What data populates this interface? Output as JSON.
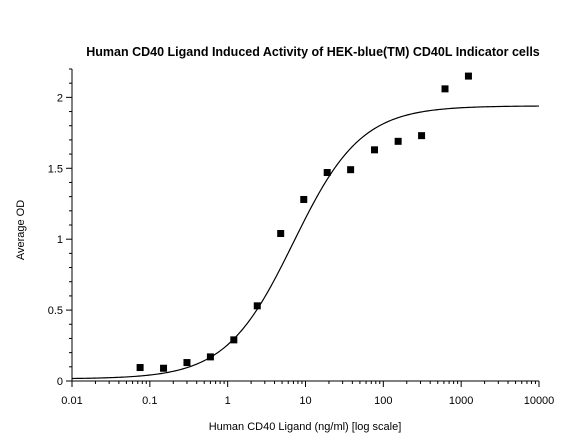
{
  "chart_data": {
    "type": "scatter",
    "title": "Human CD40 Ligand Induced Activity of HEK-blue(TM) CD40L Indicator cells",
    "xlabel": "Human CD40 Ligand (ng/ml) [log scale]",
    "ylabel": "Average OD",
    "x_scale": "log",
    "xlim": [
      0.01,
      10000
    ],
    "ylim": [
      0,
      2.2
    ],
    "x_ticks": [
      {
        "value": 0.01,
        "label": "0.01"
      },
      {
        "value": 0.1,
        "label": "0.1"
      },
      {
        "value": 1,
        "label": "1"
      },
      {
        "value": 10,
        "label": "10"
      },
      {
        "value": 100,
        "label": "100"
      },
      {
        "value": 1000,
        "label": "1000"
      },
      {
        "value": 10000,
        "label": "10000"
      }
    ],
    "y_ticks": [
      {
        "value": 0,
        "label": "0"
      },
      {
        "value": 0.5,
        "label": "0.5"
      },
      {
        "value": 1,
        "label": "1"
      },
      {
        "value": 1.5,
        "label": "1.5"
      },
      {
        "value": 2,
        "label": "2"
      }
    ],
    "series": [
      {
        "marker": "square",
        "color": "#000000",
        "points": [
          {
            "x": 0.075,
            "y": 0.095
          },
          {
            "x": 0.15,
            "y": 0.09
          },
          {
            "x": 0.3,
            "y": 0.13
          },
          {
            "x": 0.6,
            "y": 0.17
          },
          {
            "x": 1.2,
            "y": 0.29
          },
          {
            "x": 2.4,
            "y": 0.53
          },
          {
            "x": 4.8,
            "y": 1.04
          },
          {
            "x": 9.5,
            "y": 1.28
          },
          {
            "x": 19,
            "y": 1.47
          },
          {
            "x": 38,
            "y": 1.49
          },
          {
            "x": 77,
            "y": 1.63
          },
          {
            "x": 155,
            "y": 1.69
          },
          {
            "x": 310,
            "y": 1.73
          },
          {
            "x": 620,
            "y": 2.06
          },
          {
            "x": 1240,
            "y": 2.15
          }
        ]
      }
    ],
    "fit_curve": {
      "type": "4PL",
      "color": "#000000",
      "bottom": 0.015,
      "top": 1.94,
      "ec50": 7.0,
      "hill": 1.0
    },
    "grid": false,
    "legend": "none"
  }
}
